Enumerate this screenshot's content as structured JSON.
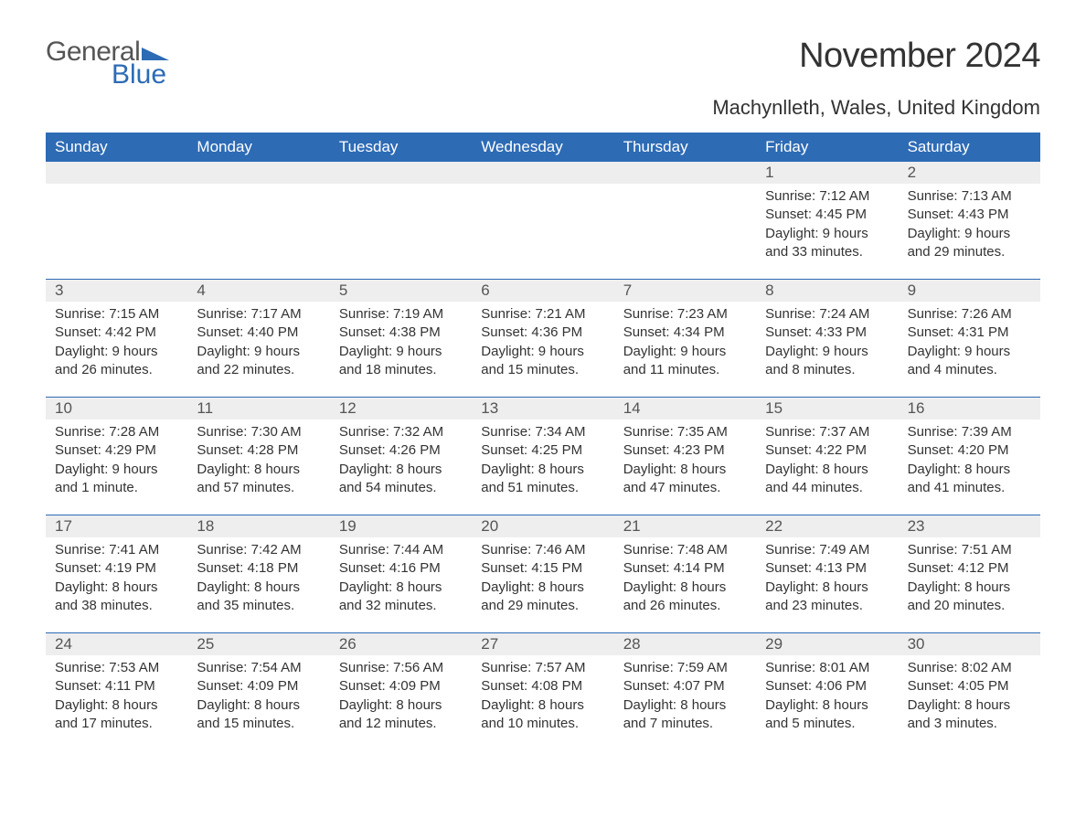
{
  "logo": {
    "general": "General",
    "blue": "Blue",
    "icon_color": "#2d6bb5"
  },
  "title": "November 2024",
  "location": "Machynlleth, Wales, United Kingdom",
  "colors": {
    "header_bg": "#2d6bb5",
    "header_text": "#ffffff",
    "daynum_bg": "#eeeeee",
    "body_text": "#333333",
    "rule": "#2d6bb5",
    "page_bg": "#ffffff"
  },
  "weekdays": [
    "Sunday",
    "Monday",
    "Tuesday",
    "Wednesday",
    "Thursday",
    "Friday",
    "Saturday"
  ],
  "weeks": [
    {
      "daynums": [
        "",
        "",
        "",
        "",
        "",
        "1",
        "2"
      ],
      "cells": [
        null,
        null,
        null,
        null,
        null,
        {
          "sunrise": "Sunrise: 7:12 AM",
          "sunset": "Sunset: 4:45 PM",
          "daylight": "Daylight: 9 hours and 33 minutes."
        },
        {
          "sunrise": "Sunrise: 7:13 AM",
          "sunset": "Sunset: 4:43 PM",
          "daylight": "Daylight: 9 hours and 29 minutes."
        }
      ]
    },
    {
      "daynums": [
        "3",
        "4",
        "5",
        "6",
        "7",
        "8",
        "9"
      ],
      "cells": [
        {
          "sunrise": "Sunrise: 7:15 AM",
          "sunset": "Sunset: 4:42 PM",
          "daylight": "Daylight: 9 hours and 26 minutes."
        },
        {
          "sunrise": "Sunrise: 7:17 AM",
          "sunset": "Sunset: 4:40 PM",
          "daylight": "Daylight: 9 hours and 22 minutes."
        },
        {
          "sunrise": "Sunrise: 7:19 AM",
          "sunset": "Sunset: 4:38 PM",
          "daylight": "Daylight: 9 hours and 18 minutes."
        },
        {
          "sunrise": "Sunrise: 7:21 AM",
          "sunset": "Sunset: 4:36 PM",
          "daylight": "Daylight: 9 hours and 15 minutes."
        },
        {
          "sunrise": "Sunrise: 7:23 AM",
          "sunset": "Sunset: 4:34 PM",
          "daylight": "Daylight: 9 hours and 11 minutes."
        },
        {
          "sunrise": "Sunrise: 7:24 AM",
          "sunset": "Sunset: 4:33 PM",
          "daylight": "Daylight: 9 hours and 8 minutes."
        },
        {
          "sunrise": "Sunrise: 7:26 AM",
          "sunset": "Sunset: 4:31 PM",
          "daylight": "Daylight: 9 hours and 4 minutes."
        }
      ]
    },
    {
      "daynums": [
        "10",
        "11",
        "12",
        "13",
        "14",
        "15",
        "16"
      ],
      "cells": [
        {
          "sunrise": "Sunrise: 7:28 AM",
          "sunset": "Sunset: 4:29 PM",
          "daylight": "Daylight: 9 hours and 1 minute."
        },
        {
          "sunrise": "Sunrise: 7:30 AM",
          "sunset": "Sunset: 4:28 PM",
          "daylight": "Daylight: 8 hours and 57 minutes."
        },
        {
          "sunrise": "Sunrise: 7:32 AM",
          "sunset": "Sunset: 4:26 PM",
          "daylight": "Daylight: 8 hours and 54 minutes."
        },
        {
          "sunrise": "Sunrise: 7:34 AM",
          "sunset": "Sunset: 4:25 PM",
          "daylight": "Daylight: 8 hours and 51 minutes."
        },
        {
          "sunrise": "Sunrise: 7:35 AM",
          "sunset": "Sunset: 4:23 PM",
          "daylight": "Daylight: 8 hours and 47 minutes."
        },
        {
          "sunrise": "Sunrise: 7:37 AM",
          "sunset": "Sunset: 4:22 PM",
          "daylight": "Daylight: 8 hours and 44 minutes."
        },
        {
          "sunrise": "Sunrise: 7:39 AM",
          "sunset": "Sunset: 4:20 PM",
          "daylight": "Daylight: 8 hours and 41 minutes."
        }
      ]
    },
    {
      "daynums": [
        "17",
        "18",
        "19",
        "20",
        "21",
        "22",
        "23"
      ],
      "cells": [
        {
          "sunrise": "Sunrise: 7:41 AM",
          "sunset": "Sunset: 4:19 PM",
          "daylight": "Daylight: 8 hours and 38 minutes."
        },
        {
          "sunrise": "Sunrise: 7:42 AM",
          "sunset": "Sunset: 4:18 PM",
          "daylight": "Daylight: 8 hours and 35 minutes."
        },
        {
          "sunrise": "Sunrise: 7:44 AM",
          "sunset": "Sunset: 4:16 PM",
          "daylight": "Daylight: 8 hours and 32 minutes."
        },
        {
          "sunrise": "Sunrise: 7:46 AM",
          "sunset": "Sunset: 4:15 PM",
          "daylight": "Daylight: 8 hours and 29 minutes."
        },
        {
          "sunrise": "Sunrise: 7:48 AM",
          "sunset": "Sunset: 4:14 PM",
          "daylight": "Daylight: 8 hours and 26 minutes."
        },
        {
          "sunrise": "Sunrise: 7:49 AM",
          "sunset": "Sunset: 4:13 PM",
          "daylight": "Daylight: 8 hours and 23 minutes."
        },
        {
          "sunrise": "Sunrise: 7:51 AM",
          "sunset": "Sunset: 4:12 PM",
          "daylight": "Daylight: 8 hours and 20 minutes."
        }
      ]
    },
    {
      "daynums": [
        "24",
        "25",
        "26",
        "27",
        "28",
        "29",
        "30"
      ],
      "cells": [
        {
          "sunrise": "Sunrise: 7:53 AM",
          "sunset": "Sunset: 4:11 PM",
          "daylight": "Daylight: 8 hours and 17 minutes."
        },
        {
          "sunrise": "Sunrise: 7:54 AM",
          "sunset": "Sunset: 4:09 PM",
          "daylight": "Daylight: 8 hours and 15 minutes."
        },
        {
          "sunrise": "Sunrise: 7:56 AM",
          "sunset": "Sunset: 4:09 PM",
          "daylight": "Daylight: 8 hours and 12 minutes."
        },
        {
          "sunrise": "Sunrise: 7:57 AM",
          "sunset": "Sunset: 4:08 PM",
          "daylight": "Daylight: 8 hours and 10 minutes."
        },
        {
          "sunrise": "Sunrise: 7:59 AM",
          "sunset": "Sunset: 4:07 PM",
          "daylight": "Daylight: 8 hours and 7 minutes."
        },
        {
          "sunrise": "Sunrise: 8:01 AM",
          "sunset": "Sunset: 4:06 PM",
          "daylight": "Daylight: 8 hours and 5 minutes."
        },
        {
          "sunrise": "Sunrise: 8:02 AM",
          "sunset": "Sunset: 4:05 PM",
          "daylight": "Daylight: 8 hours and 3 minutes."
        }
      ]
    }
  ]
}
